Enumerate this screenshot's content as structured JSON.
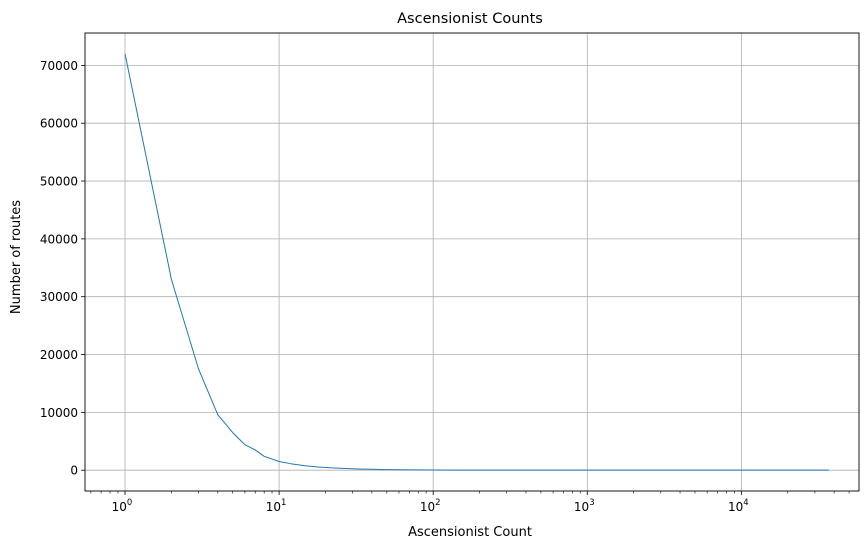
{
  "chart_data": {
    "type": "line",
    "title": "Ascensionist Counts",
    "xlabel": "Ascensionist Count",
    "ylabel": "Number of routes",
    "xscale": "log",
    "xlim": [
      0.55,
      58000
    ],
    "ylim": [
      -3600,
      75600
    ],
    "grid": true,
    "x_major_ticks": [
      {
        "value": 1,
        "base": "10",
        "exp": "0"
      },
      {
        "value": 10,
        "base": "10",
        "exp": "1"
      },
      {
        "value": 100,
        "base": "10",
        "exp": "2"
      },
      {
        "value": 1000,
        "base": "10",
        "exp": "3"
      },
      {
        "value": 10000,
        "base": "10",
        "exp": "4"
      }
    ],
    "y_ticks": [
      {
        "value": 0,
        "label": "0"
      },
      {
        "value": 10000,
        "label": "10000"
      },
      {
        "value": 20000,
        "label": "20000"
      },
      {
        "value": 30000,
        "label": "30000"
      },
      {
        "value": 40000,
        "label": "40000"
      },
      {
        "value": 50000,
        "label": "50000"
      },
      {
        "value": 60000,
        "label": "60000"
      },
      {
        "value": 70000,
        "label": "70000"
      }
    ],
    "line_color": "#1f77b4",
    "series": [
      {
        "x": [
          1,
          2,
          3,
          4,
          5,
          6,
          7,
          8,
          10,
          12,
          15,
          18,
          22,
          27,
          33,
          40,
          50,
          60,
          80,
          100,
          150,
          200,
          300,
          500,
          1000,
          2000,
          5000,
          10000,
          20000,
          37000
        ],
        "y": [
          72000,
          33000,
          17500,
          9600,
          6500,
          4400,
          3500,
          2400,
          1500,
          1100,
          750,
          550,
          400,
          300,
          200,
          150,
          100,
          80,
          50,
          30,
          20,
          12,
          8,
          5,
          3,
          2,
          1,
          1,
          1,
          1
        ]
      }
    ]
  }
}
